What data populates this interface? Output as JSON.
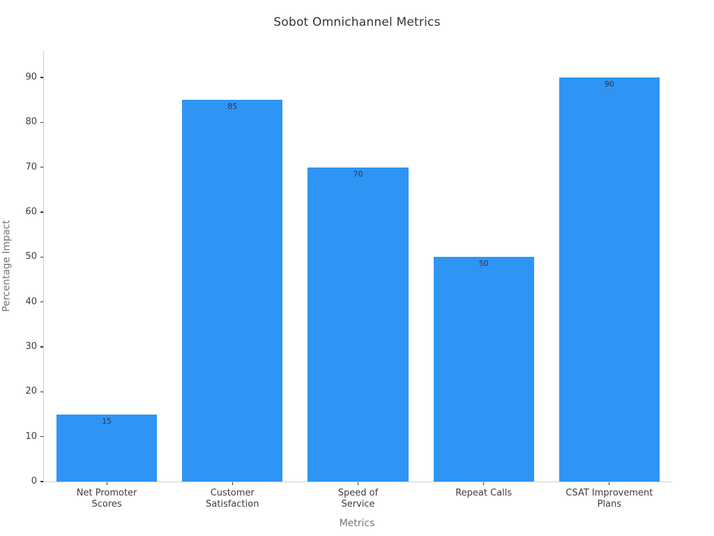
{
  "chart_data": {
    "type": "bar",
    "title": "Sobot Omnichannel Metrics",
    "xlabel": "Metrics",
    "ylabel": "Percentage Impact",
    "categories": [
      "Net Promoter Scores",
      "Customer Satisfaction",
      "Speed of Service",
      "Repeat Calls",
      "CSAT Improvement Plans"
    ],
    "category_label_lines": [
      [
        "Net Promoter",
        "Scores"
      ],
      [
        "Customer",
        "Satisfaction"
      ],
      [
        "Speed of",
        "Service"
      ],
      [
        "Repeat Calls"
      ],
      [
        "CSAT Improvement",
        "Plans"
      ]
    ],
    "values": [
      15,
      85,
      70,
      50,
      90
    ],
    "value_labels": [
      "15",
      "85",
      "70",
      "50",
      "90"
    ],
    "ylim": [
      0,
      96
    ],
    "yticks": [
      0,
      10,
      20,
      30,
      40,
      50,
      60,
      70,
      80,
      90
    ],
    "grid": false,
    "legend": "none",
    "colors": {
      "bar_fill": "#2e95f5",
      "spine": "#cccccc",
      "tick_mark": "#333333",
      "tick_label": "#3c3c3c",
      "axis_label": "#757575",
      "title_text": "#333333",
      "bar_value_text": "#2c3345",
      "background": "#ffffff"
    }
  }
}
